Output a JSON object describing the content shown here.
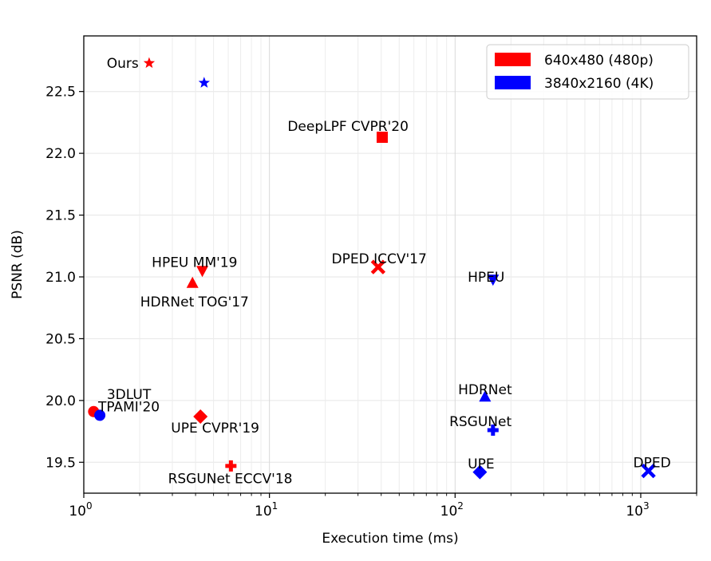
{
  "chart_data": {
    "type": "scatter",
    "title": "",
    "xlabel": "Execution time (ms)",
    "ylabel": "PSNR (dB)",
    "xscale": "log",
    "xlim": [
      1,
      2000
    ],
    "ylim": [
      19.25,
      22.95
    ],
    "xticks": [
      {
        "value": 1,
        "base": "10",
        "exp": "0"
      },
      {
        "value": 10,
        "base": "10",
        "exp": "1"
      },
      {
        "value": 100,
        "base": "10",
        "exp": "2"
      },
      {
        "value": 1000,
        "base": "10",
        "exp": "3"
      }
    ],
    "yticks": [
      {
        "value": 19.5,
        "label": "19.5"
      },
      {
        "value": 20.0,
        "label": "20.0"
      },
      {
        "value": 20.5,
        "label": "20.5"
      },
      {
        "value": 21.0,
        "label": "21.0"
      },
      {
        "value": 21.5,
        "label": "21.5"
      },
      {
        "value": 22.0,
        "label": "22.0"
      },
      {
        "value": 22.5,
        "label": "22.5"
      }
    ],
    "grid": "on (major and minor x)",
    "legend": {
      "position": "top-right",
      "entries": [
        {
          "label": "640x480 (480p)",
          "color": "#ff0000"
        },
        {
          "label": "3840x2160 (4K)",
          "color": "#0000ff"
        }
      ]
    },
    "series": [
      {
        "name": "640x480 (480p)",
        "color": "#ff0000",
        "points": [
          {
            "method": "Ours",
            "x": 2.25,
            "y": 22.73,
            "marker": "star"
          },
          {
            "method": "DeepLPF",
            "x": 40.5,
            "y": 22.13,
            "marker": "square"
          },
          {
            "method": "HPEU",
            "x": 4.35,
            "y": 21.05,
            "marker": "triangle-down"
          },
          {
            "method": "HDRNet",
            "x": 3.85,
            "y": 20.95,
            "marker": "triangle-up"
          },
          {
            "method": "DPED",
            "x": 38.5,
            "y": 21.08,
            "marker": "x"
          },
          {
            "method": "3DLUT",
            "x": 1.13,
            "y": 19.91,
            "marker": "circle"
          },
          {
            "method": "UPE",
            "x": 4.25,
            "y": 19.87,
            "marker": "diamond"
          },
          {
            "method": "RSGUNet",
            "x": 6.2,
            "y": 19.47,
            "marker": "plus"
          }
        ]
      },
      {
        "name": "3840x2160 (4K)",
        "color": "#0000ff",
        "points": [
          {
            "method": "Ours",
            "x": 4.45,
            "y": 22.57,
            "marker": "star"
          },
          {
            "method": "HPEU",
            "x": 160,
            "y": 20.98,
            "marker": "triangle-down"
          },
          {
            "method": "HDRNet",
            "x": 145,
            "y": 20.03,
            "marker": "triangle-up"
          },
          {
            "method": "RSGUNet",
            "x": 160,
            "y": 19.76,
            "marker": "plus"
          },
          {
            "method": "UPE",
            "x": 136,
            "y": 19.42,
            "marker": "diamond"
          },
          {
            "method": "DPED",
            "x": 1100,
            "y": 19.43,
            "marker": "x"
          },
          {
            "method": "3DLUT",
            "x": 1.22,
            "y": 19.88,
            "marker": "circle"
          }
        ]
      }
    ],
    "annotations": [
      {
        "text": "Ours",
        "x": 1.62,
        "y": 22.73
      },
      {
        "text": "DeepLPF CVPR'20",
        "x": 26.5,
        "y": 22.22
      },
      {
        "text": "HPEU MM'19",
        "x": 3.95,
        "y": 21.12
      },
      {
        "text": "HDRNet TOG'17",
        "x": 3.95,
        "y": 20.8
      },
      {
        "text": "DPED ICCV'17",
        "x": 39,
        "y": 21.15
      },
      {
        "text": "HPEU",
        "x": 147,
        "y": 21.0
      },
      {
        "text": "3DLUT",
        "x": 1.75,
        "y": 20.05
      },
      {
        "text": "TPAMI'20",
        "x": 1.75,
        "y": 19.95
      },
      {
        "text": "UPE CVPR'19",
        "x": 5.1,
        "y": 19.78
      },
      {
        "text": "RSGUNet ECCV'18",
        "x": 6.15,
        "y": 19.37
      },
      {
        "text": "HDRNet",
        "x": 145,
        "y": 20.09
      },
      {
        "text": "RSGUNet",
        "x": 137,
        "y": 19.83
      },
      {
        "text": "UPE",
        "x": 138,
        "y": 19.49
      },
      {
        "text": "DPED",
        "x": 1150,
        "y": 19.5
      }
    ]
  }
}
